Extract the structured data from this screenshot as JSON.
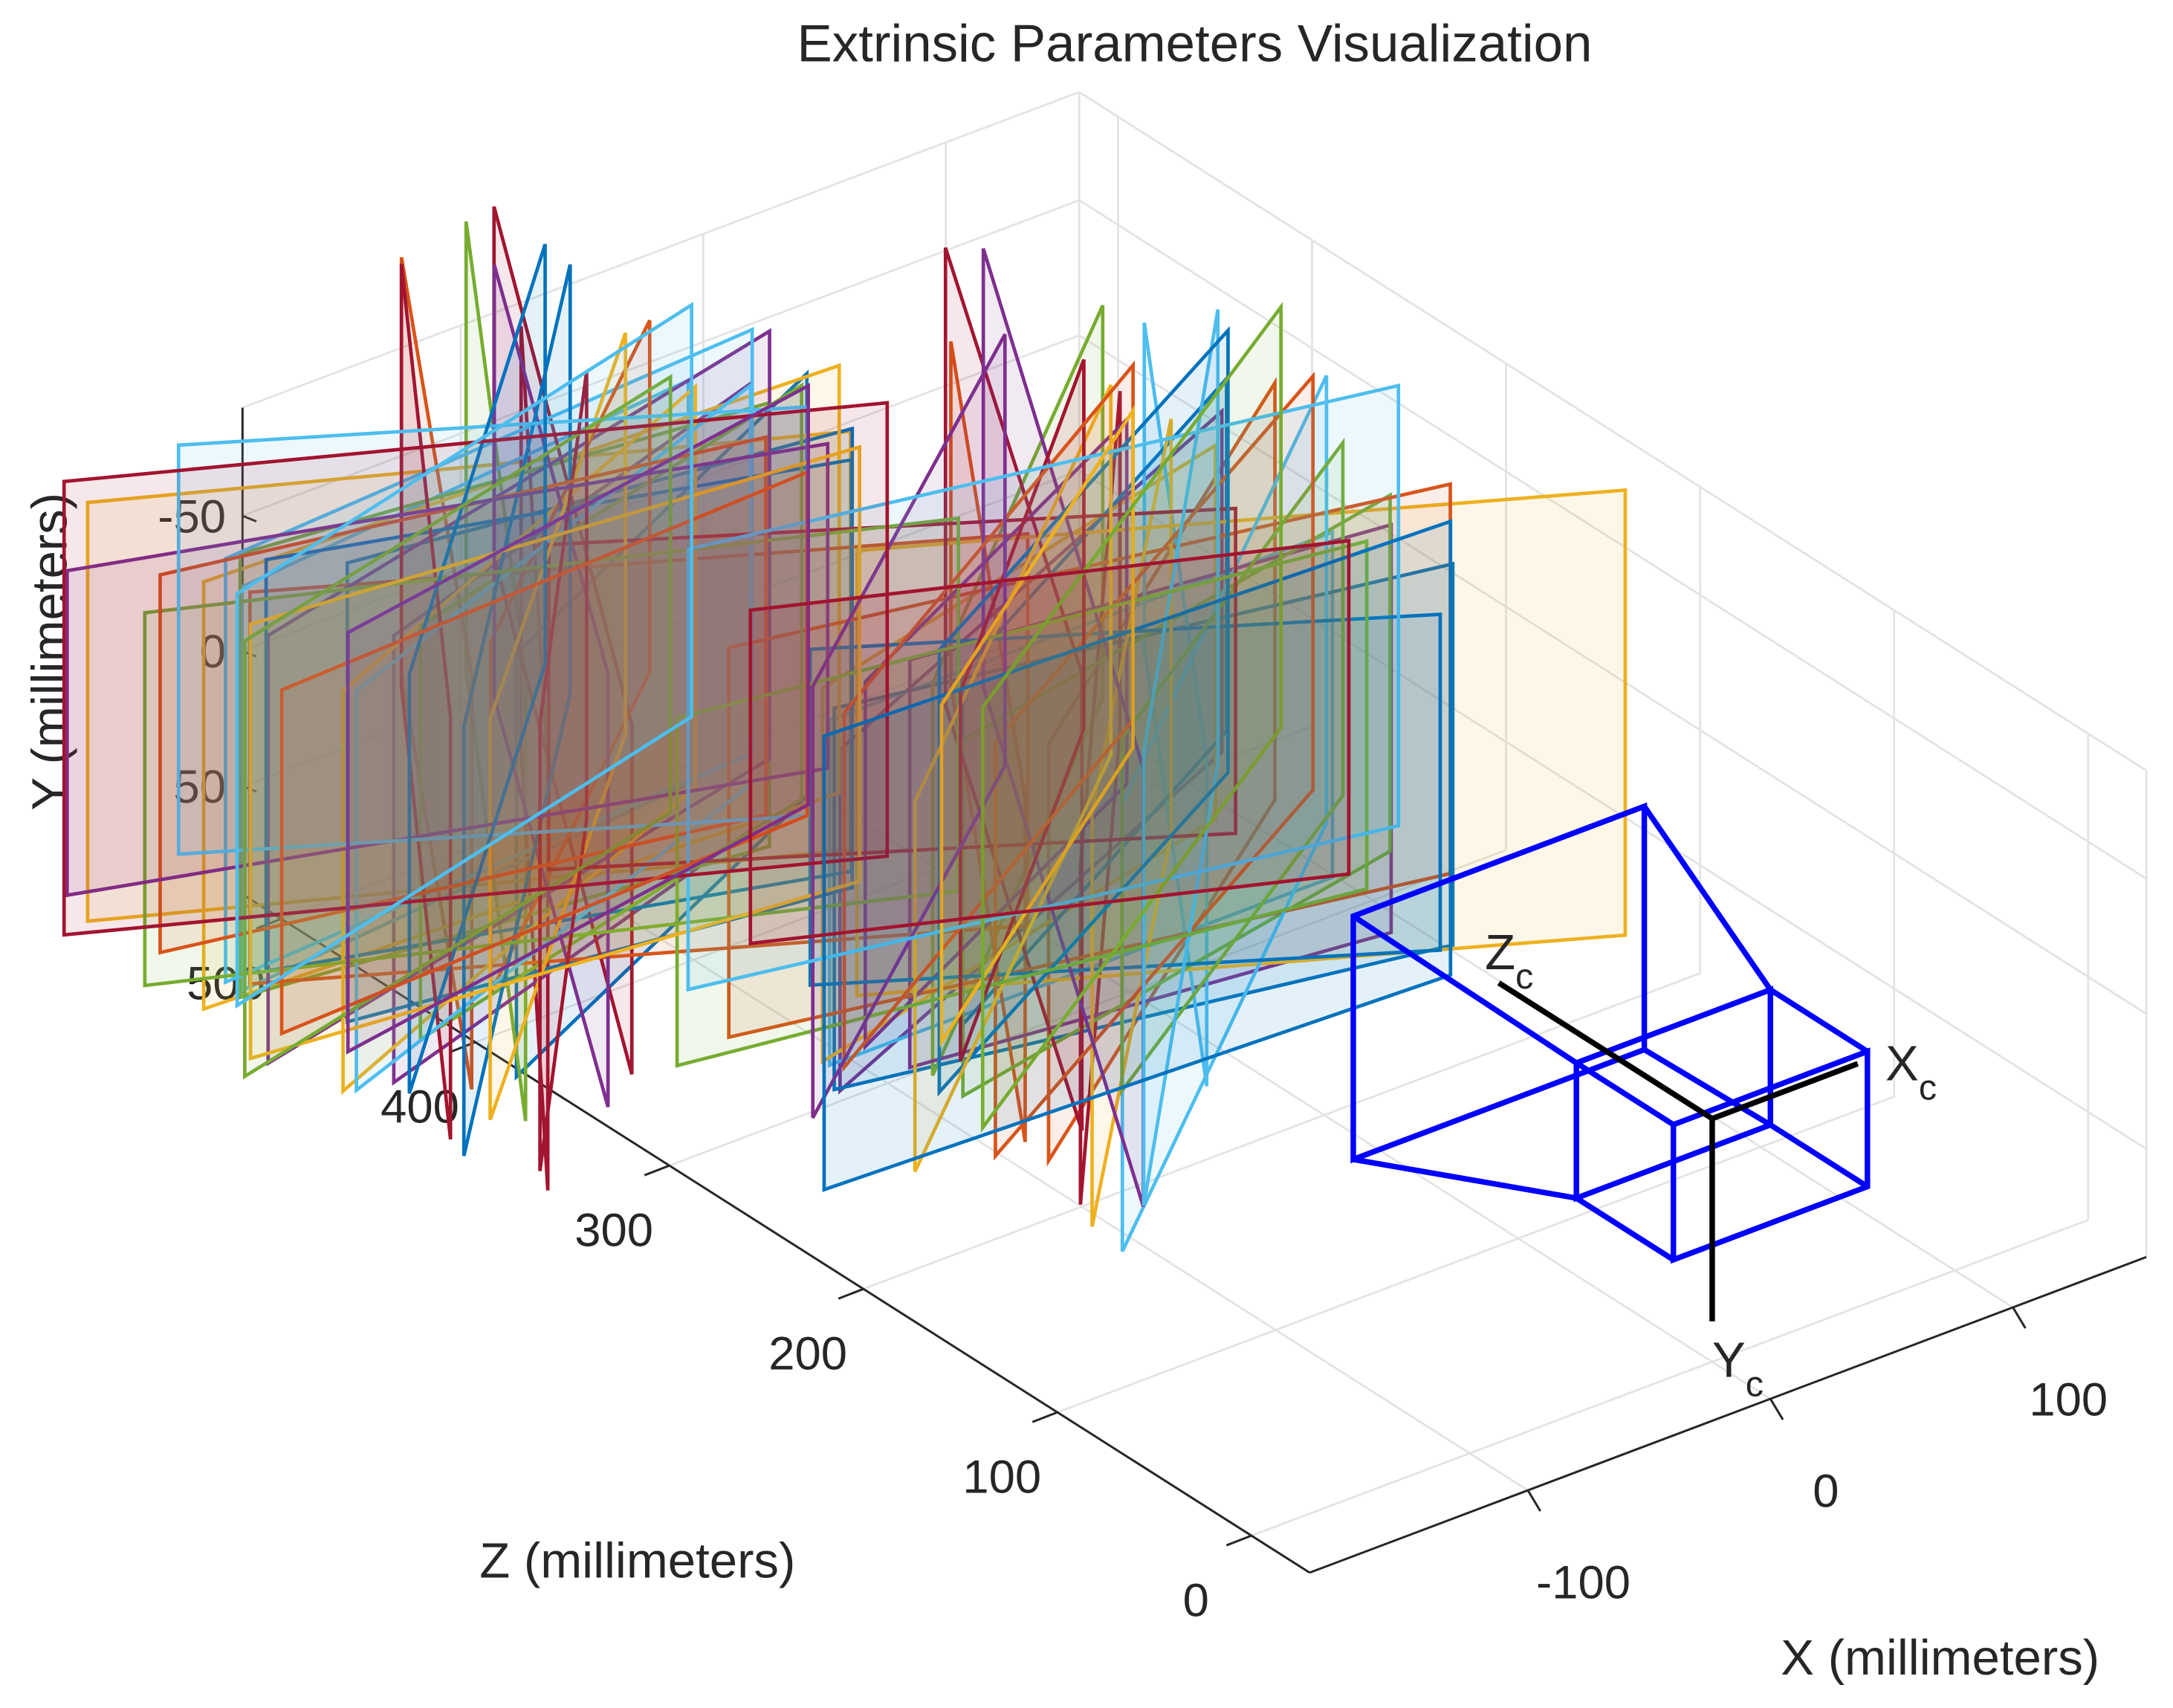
{
  "chart_data": {
    "type": "extrinsics3d",
    "title": "Extrinsic Parameters Visualization",
    "xlabel": "X (millimeters)",
    "ylabel": "Y (millimeters)",
    "zlabel": "Z (millimeters)",
    "xlim": [
      -190,
      155
    ],
    "ylim": [
      -90,
      90
    ],
    "zlim": [
      -30,
      520
    ],
    "xticks": [
      -100,
      0,
      100
    ],
    "yticks": [
      -50,
      0,
      50
    ],
    "zticks": [
      0,
      100,
      200,
      300,
      400,
      500
    ],
    "y_reversed": true,
    "grid": true,
    "camera_color": "#0000ff",
    "camera_axes": [
      {
        "label": "X",
        "subscript": "c"
      },
      {
        "label": "Y",
        "subscript": "c"
      },
      {
        "label": "Z",
        "subscript": "c"
      }
    ]
  }
}
